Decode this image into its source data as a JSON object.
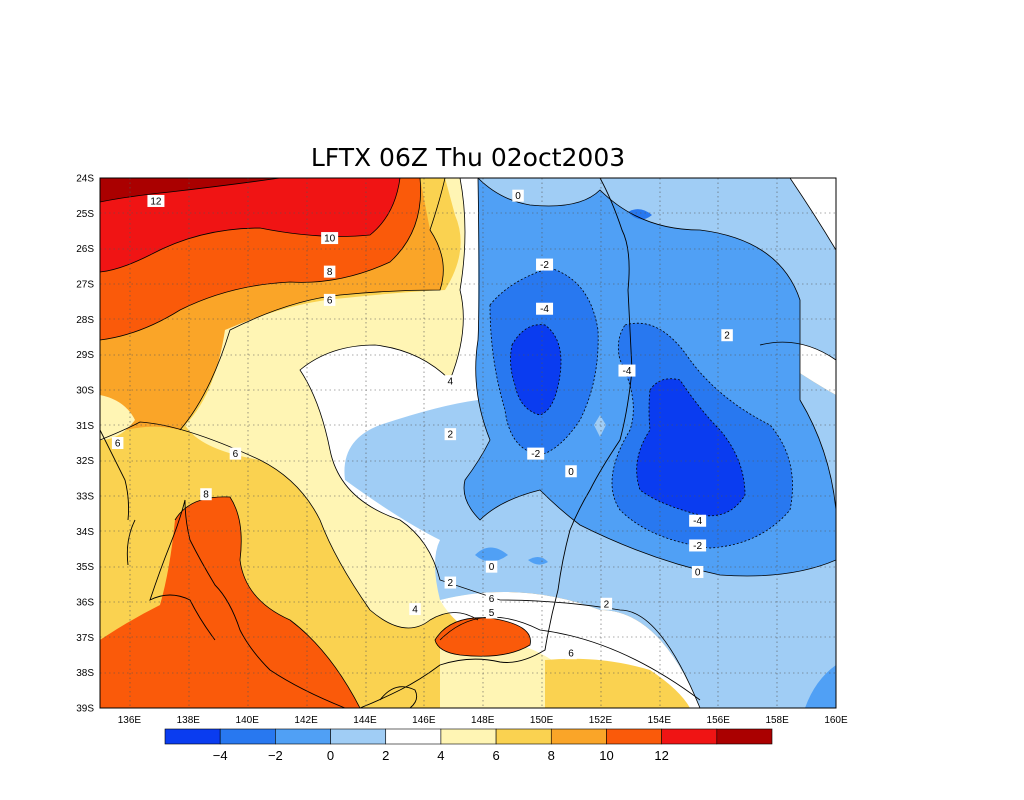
{
  "title": "LFTX 06Z Thu 02oct2003",
  "map": {
    "lat_labels": [
      "24S",
      "25S",
      "26S",
      "27S",
      "28S",
      "29S",
      "30S",
      "31S",
      "32S",
      "33S",
      "34S",
      "35S",
      "36S",
      "37S",
      "38S",
      "39S"
    ],
    "lon_labels": [
      "136E",
      "138E",
      "140E",
      "142E",
      "144E",
      "146E",
      "148E",
      "150E",
      "152E",
      "154E",
      "156E",
      "158E",
      "160E"
    ],
    "lat_range": [
      -39,
      -24
    ],
    "lon_range": [
      135,
      160
    ],
    "grid": "dotted",
    "contour_labels": [
      {
        "text": "12",
        "lon": 136.9,
        "lat": -24.65
      },
      {
        "text": "10",
        "lon": 142.8,
        "lat": -25.7
      },
      {
        "text": "8",
        "lon": 142.8,
        "lat": -26.65
      },
      {
        "text": "6",
        "lon": 142.8,
        "lat": -27.45
      },
      {
        "text": "0",
        "lon": 149.2,
        "lat": -24.5
      },
      {
        "text": "-2",
        "lon": 150.1,
        "lat": -26.45
      },
      {
        "text": "-4",
        "lon": 150.1,
        "lat": -27.7
      },
      {
        "text": "2",
        "lon": 156.3,
        "lat": -28.45
      },
      {
        "text": "-4",
        "lon": 152.9,
        "lat": -29.45
      },
      {
        "text": "4",
        "lon": 146.9,
        "lat": -29.75
      },
      {
        "text": "6",
        "lon": 135.6,
        "lat": -31.5
      },
      {
        "text": "2",
        "lon": 146.9,
        "lat": -31.25
      },
      {
        "text": "6",
        "lon": 139.6,
        "lat": -31.8
      },
      {
        "text": "-2",
        "lon": 149.8,
        "lat": -31.8
      },
      {
        "text": "0",
        "lon": 151.0,
        "lat": -32.3
      },
      {
        "text": "8",
        "lon": 138.6,
        "lat": -32.95
      },
      {
        "text": "-4",
        "lon": 155.3,
        "lat": -33.7
      },
      {
        "text": "-2",
        "lon": 155.3,
        "lat": -34.4
      },
      {
        "text": "0",
        "lon": 148.3,
        "lat": -35.0
      },
      {
        "text": "0",
        "lon": 155.3,
        "lat": -35.15
      },
      {
        "text": "2",
        "lon": 146.9,
        "lat": -35.45
      },
      {
        "text": "6",
        "lon": 148.3,
        "lat": -35.9
      },
      {
        "text": "4",
        "lon": 145.7,
        "lat": -36.2
      },
      {
        "text": "2",
        "lon": 152.2,
        "lat": -36.05
      },
      {
        "text": "5",
        "lon": 148.3,
        "lat": -36.3
      },
      {
        "text": "6",
        "lon": 151.0,
        "lat": -37.45
      }
    ]
  },
  "colorbar": {
    "colors": [
      "#0a3cf0",
      "#2878f0",
      "#50a0f5",
      "#a0cdf5",
      "#ffffff",
      "#fff5b4",
      "#fad250",
      "#faa528",
      "#fa5a0a",
      "#f01414",
      "#aa0000"
    ],
    "labels": [
      "-4",
      "-2",
      "0",
      "2",
      "4",
      "6",
      "8",
      "10",
      "12"
    ]
  }
}
